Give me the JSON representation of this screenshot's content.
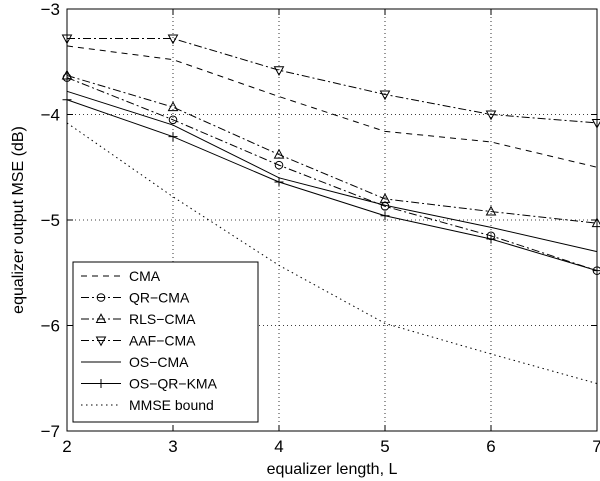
{
  "chart_data": {
    "type": "line",
    "title": "",
    "xlabel": "equalizer length, L",
    "ylabel": "equalizer output MSE (dB)",
    "xlim": [
      2,
      7
    ],
    "ylim": [
      -7,
      -3
    ],
    "xticks": [
      "2",
      "3",
      "4",
      "5",
      "6",
      "7"
    ],
    "yticks": [
      "−3",
      "−4",
      "−5",
      "−6",
      "−7"
    ],
    "grid": true,
    "legend_position": "bottom-left",
    "x": [
      2,
      3,
      4,
      5,
      6,
      7
    ],
    "series": [
      {
        "name": "CMA",
        "style": "dashed",
        "marker": "none",
        "color": "#000000",
        "values": [
          -3.35,
          -3.48,
          -3.83,
          -4.16,
          -4.26,
          -4.5
        ]
      },
      {
        "name": "QR−CMA",
        "style": "dashdot",
        "marker": "circle",
        "color": "#000000",
        "values": [
          -3.65,
          -4.05,
          -4.48,
          -4.87,
          -5.15,
          -5.48
        ]
      },
      {
        "name": "RLS−CMA",
        "style": "dashdot",
        "marker": "triangle-up",
        "color": "#000000",
        "values": [
          -3.63,
          -3.93,
          -4.38,
          -4.8,
          -4.92,
          -5.03
        ]
      },
      {
        "name": "AAF−CMA",
        "style": "dashdot",
        "marker": "triangle-down",
        "color": "#000000",
        "values": [
          -3.28,
          -3.28,
          -3.58,
          -3.81,
          -4.0,
          -4.08
        ]
      },
      {
        "name": "OS−CMA",
        "style": "solid",
        "marker": "none",
        "color": "#000000",
        "values": [
          -3.78,
          -4.1,
          -4.6,
          -4.86,
          -5.07,
          -5.3
        ]
      },
      {
        "name": "OS−QR−KMA",
        "style": "solid",
        "marker": "plus",
        "color": "#000000",
        "values": [
          -3.86,
          -4.21,
          -4.64,
          -4.96,
          -5.18,
          -5.48
        ]
      },
      {
        "name": "MMSE bound",
        "style": "dotted",
        "marker": "none",
        "color": "#000000",
        "values": [
          -4.08,
          -4.78,
          -5.43,
          -5.98,
          -6.27,
          -6.55
        ]
      }
    ]
  }
}
